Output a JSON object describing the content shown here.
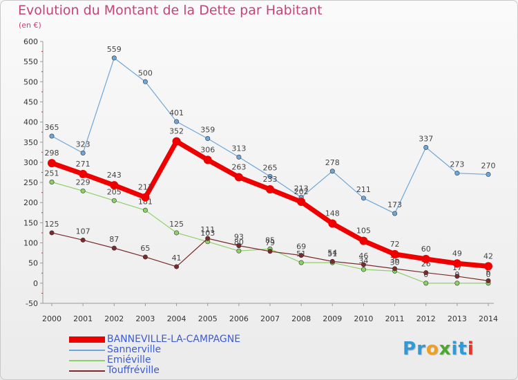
{
  "header": {
    "title": "Evolution du Montant de la Dette par Habitant",
    "subtitle": "(en €)"
  },
  "logo": {
    "text": "Proxiti",
    "letters": [
      {
        "ch": "P",
        "color": "#2f9ad6"
      },
      {
        "ch": "r",
        "color": "#2f9ad6"
      },
      {
        "ch": "o",
        "color": "#f0a020"
      },
      {
        "ch": "x",
        "color": "#4aa830"
      },
      {
        "ch": "i",
        "color": "#2f9ad6"
      },
      {
        "ch": "t",
        "color": "#2f9ad6"
      },
      {
        "ch": "i",
        "color": "#e5332a"
      }
    ]
  },
  "chart_data": {
    "type": "line",
    "title": "Evolution du Montant de la Dette par Habitant",
    "subtitle": "(en €)",
    "xlabel": "",
    "ylabel": "",
    "x": [
      "2000",
      "2001",
      "2002",
      "2003",
      "2004",
      "2005",
      "2006",
      "2007",
      "2008",
      "2009",
      "2010",
      "2011",
      "2012",
      "2013",
      "2014"
    ],
    "ylim": [
      -50,
      600
    ],
    "yticks": [
      -50,
      0,
      50,
      100,
      150,
      200,
      250,
      300,
      350,
      400,
      450,
      500,
      550,
      600
    ],
    "grid": false,
    "legend_position": "bottom-left",
    "series": [
      {
        "name": "BANNEVILLE-LA-CAMPAGNE",
        "color": "#ee0000",
        "emphasis": true,
        "values": [
          298,
          271,
          243,
          213,
          352,
          306,
          263,
          233,
          202,
          148,
          105,
          72,
          60,
          49,
          42
        ]
      },
      {
        "name": "Sannerville",
        "color": "#6ea6d8",
        "emphasis": false,
        "values": [
          365,
          323,
          559,
          500,
          401,
          359,
          313,
          265,
          213,
          278,
          211,
          173,
          337,
          273,
          270
        ]
      },
      {
        "name": "Emiéville",
        "color": "#8cd068",
        "emphasis": false,
        "values": [
          251,
          229,
          205,
          181,
          125,
          103,
          80,
          85,
          51,
          51,
          34,
          30,
          0,
          0,
          0
        ]
      },
      {
        "name": "Touffréville",
        "color": "#7a2a2a",
        "emphasis": false,
        "values": [
          125,
          107,
          87,
          65,
          41,
          111,
          93,
          79,
          69,
          54,
          46,
          36,
          26,
          17,
          6
        ]
      }
    ]
  }
}
